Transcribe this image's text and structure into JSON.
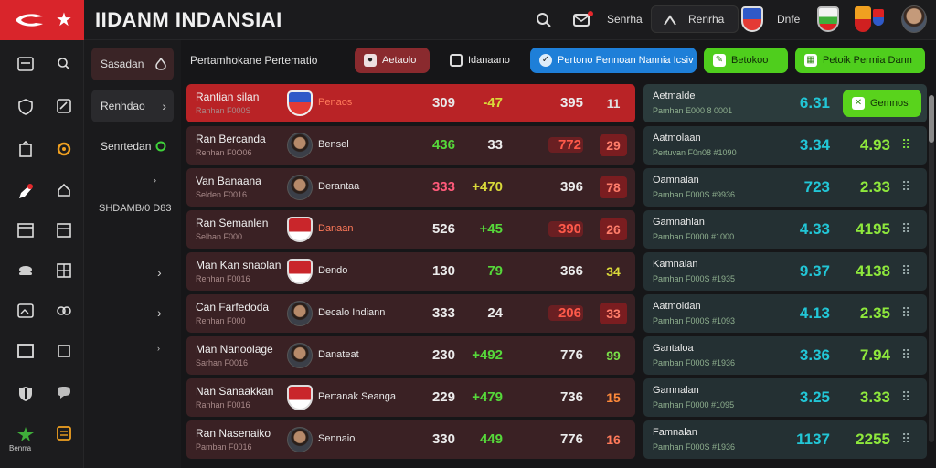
{
  "app": {
    "title": "IIDANM INDANSIAI"
  },
  "topbar": {
    "search_icon": "search-icon",
    "mail_icon": "mail-icon",
    "link1": "Senrha",
    "pill_label": "Renrha",
    "link2": "Dnfe"
  },
  "subnav": {
    "items": [
      {
        "label": "Sasadan",
        "icon": "flame-icon"
      },
      {
        "label": "Renhdao",
        "icon": "chevron-right-icon"
      },
      {
        "label": "Senrtedan",
        "icon": "refresh-icon"
      }
    ],
    "static_label": "SHDAMB/0 D83"
  },
  "rail": {
    "bottom_label": "Benrra"
  },
  "toolbar": {
    "label": "Pertamhokane Pertematio",
    "btn_red": "Aetaolo",
    "btn_plain": "Idanaano",
    "btn_blue": "Pertono Pennoan Nannia Icsiv",
    "btn_green1": "Betokoo",
    "btn_green2": "Petoik Permia Dann"
  },
  "rows": [
    {
      "name": "Rantian silan",
      "sub": "Ranhan F000S",
      "team": "Penaos",
      "v1": "309",
      "v2": "-47",
      "v3": "395",
      "v4": "11"
    },
    {
      "name": "Ran Bercanda",
      "sub": "Renhan F0O06",
      "team": "Bensel",
      "v1": "436",
      "v2": "33",
      "v3": "772",
      "v4": "29"
    },
    {
      "name": "Van Banaana",
      "sub": "Selden F0016",
      "team": "Derantaa",
      "v1": "333",
      "v2": "+470",
      "v3": "396",
      "v4": "78"
    },
    {
      "name": "Ran Semanlen",
      "sub": "Selhan F000",
      "team": "Danaan",
      "v1": "526",
      "v2": "+45",
      "v3": "390",
      "v4": "26"
    },
    {
      "name": "Man Kan snaolan",
      "sub": "Renhan F0016",
      "team": "Dendo",
      "v1": "130",
      "v2": "79",
      "v3": "366",
      "v4": "34"
    },
    {
      "name": "Can Farfedoda",
      "sub": "Renhan F000",
      "team": "Decalo Indiann",
      "v1": "333",
      "v2": "24",
      "v3": "206",
      "v4": "33"
    },
    {
      "name": "Man Nanoolage",
      "sub": "Sarhan F0016",
      "team": "Danateat",
      "v1": "230",
      "v2": "+492",
      "v3": "776",
      "v4": "99"
    },
    {
      "name": "Nan Sanaakkan",
      "sub": "Ranhan F0016",
      "team": "Pertanak Seanga",
      "v1": "229",
      "v2": "+479",
      "v3": "736",
      "v4": "15"
    },
    {
      "name": "Ran Nasenaiko",
      "sub": "Pamban F0016",
      "team": "Sennaio",
      "v1": "330",
      "v2": "449",
      "v3": "776",
      "v4": "16"
    }
  ],
  "panel": {
    "button_label": "Gemnos",
    "rows": [
      {
        "name": "Aetmalde",
        "sub": "Pamhan E000 8 0001",
        "v1": "6.31",
        "v2": ""
      },
      {
        "name": "Aatmolaan",
        "sub": "Pertuvan F0n08  #1090",
        "v1": "3.34",
        "v2": "4.93"
      },
      {
        "name": "Oamnalan",
        "sub": "Pamban F000S  #9936",
        "v1": "723",
        "v2": "2.33"
      },
      {
        "name": "Gamnahlan",
        "sub": "Pamhan F0000  #1000",
        "v1": "4.33",
        "v2": "4195"
      },
      {
        "name": "Kamnalan",
        "sub": "Pamhan F000S  #1935",
        "v1": "9.37",
        "v2": "4138"
      },
      {
        "name": "Aatmoldan",
        "sub": "Pamhan F000S  #1093",
        "v1": "4.13",
        "v2": "2.35"
      },
      {
        "name": "Gantaloa",
        "sub": "Pamban F000S  #1936",
        "v1": "3.36",
        "v2": "7.94"
      },
      {
        "name": "Gamnalan",
        "sub": "Pamhan F0000  #1095",
        "v1": "3.25",
        "v2": "3.33"
      },
      {
        "name": "Famnalan",
        "sub": "Pamhan F000S  #1936",
        "v1": "1137",
        "v2": "2255"
      }
    ]
  },
  "colors": {
    "brand_red": "#d9252b",
    "accent_green": "#4fce1d",
    "accent_blue": "#1e7fd8",
    "teal": "#22c6d6"
  }
}
